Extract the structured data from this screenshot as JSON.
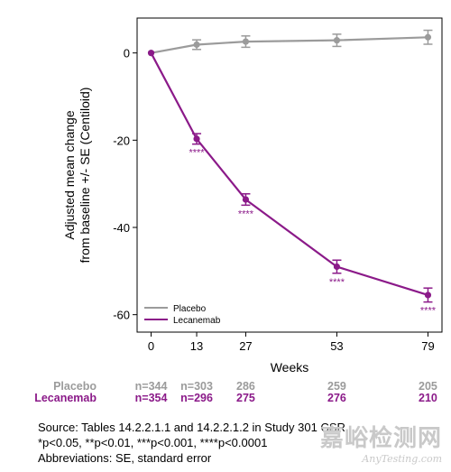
{
  "chart_data": {
    "type": "line",
    "ylabel_lines": [
      "Adjusted mean change",
      "from baseline +/- SE (Centiloid)"
    ],
    "xlabel": "Weeks",
    "x": [
      0,
      13,
      27,
      53,
      79
    ],
    "xticks": [
      "0",
      "13",
      "27",
      "53",
      "79"
    ],
    "xlim": [
      -4,
      83
    ],
    "ylim": [
      -64,
      8
    ],
    "yticks": [
      0,
      -20,
      -40,
      -60
    ],
    "grid": false,
    "legend_position": "bottom-left",
    "series": [
      {
        "name": "Placebo",
        "color": "#9b9b9b",
        "values": [
          0,
          1.9,
          2.6,
          2.9,
          3.6
        ],
        "se": [
          0,
          1.1,
          1.3,
          1.4,
          1.6
        ],
        "significance": [
          "",
          "",
          "",
          "",
          ""
        ],
        "n_labels": [
          "n=344",
          "n=303",
          "286",
          "259",
          "205"
        ]
      },
      {
        "name": "Lecanemab",
        "color": "#8b1a89",
        "values": [
          0,
          -19.7,
          -33.6,
          -49.0,
          -55.5
        ],
        "se": [
          0,
          1.2,
          1.3,
          1.5,
          1.6
        ],
        "significance": [
          "",
          "****",
          "****",
          "****",
          "****"
        ],
        "n_labels": [
          "n=354",
          "n=296",
          "275",
          "276",
          "210"
        ]
      }
    ]
  },
  "footer": {
    "source": "Source: Tables 14.2.2.1.1 and 14.2.2.1.2 in Study 301 CSR",
    "pvalues": "*p<0.05, **p<0.01, ***p<0.001, ****p<0.0001",
    "abbreviations": "Abbreviations: SE, standard error"
  },
  "watermark": {
    "main": "嘉峪检测网",
    "sub": "AnyTesting.com"
  }
}
